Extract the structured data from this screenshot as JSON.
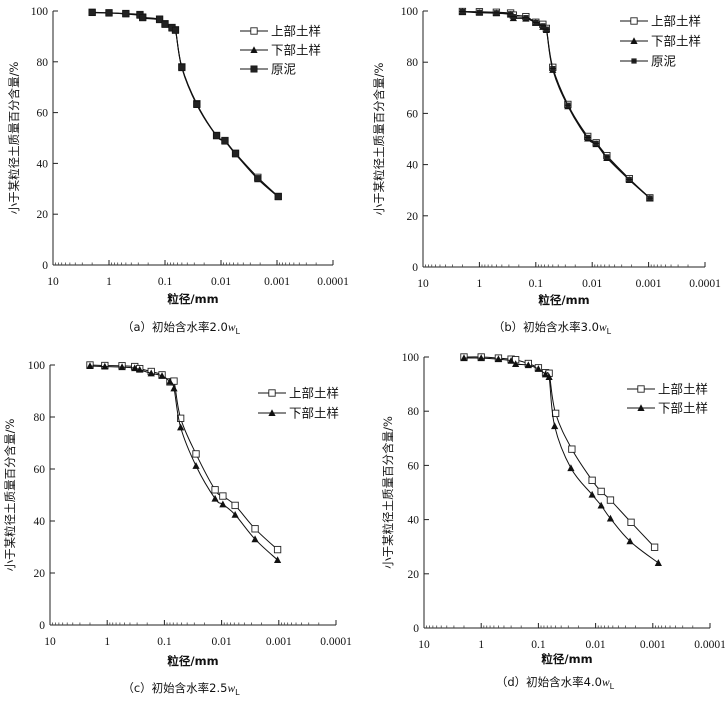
{
  "figure": {
    "sizes_note": "particle size in mm, log axis reversed",
    "panels_order": [
      "a",
      "b",
      "c",
      "d"
    ]
  },
  "chart_data": [
    {
      "id": "a",
      "type": "line",
      "title": "",
      "caption_prefix": "（a）初始含水率2.0",
      "caption_var": "w",
      "caption_sub": "L",
      "xlabel": "粒径/mm",
      "ylabel": "小于某粒径土质量百分含量/%",
      "xscale": "log-reversed",
      "xlim": [
        10,
        0.0001
      ],
      "ylim": [
        0,
        100
      ],
      "xticks": [
        "10",
        "1",
        "0.1",
        "0.01",
        "0.001",
        "0.0001"
      ],
      "yticks": [
        "0",
        "20",
        "40",
        "60",
        "80",
        "100"
      ],
      "legend_position": "top-right",
      "series": [
        {
          "name": "上部土样",
          "marker": "square-open",
          "x": [
            2,
            1,
            0.5,
            0.28,
            0.25,
            0.125,
            0.1,
            0.075,
            0.065,
            0.05,
            0.027,
            0.012,
            0.0085,
            0.0055,
            0.0022,
            0.00095
          ],
          "y": [
            99.5,
            99.3,
            99,
            98.6,
            97.6,
            96.8,
            95,
            93.5,
            92.6,
            78,
            63.5,
            51,
            49,
            44,
            34.5,
            27
          ]
        },
        {
          "name": "下部土样",
          "marker": "triangle-filled",
          "x": [
            2,
            1,
            0.5,
            0.28,
            0.25,
            0.125,
            0.1,
            0.075,
            0.065,
            0.05,
            0.027,
            0.012,
            0.0085,
            0.0055,
            0.0022,
            0.00095
          ],
          "y": [
            99.3,
            99.2,
            98.8,
            98.2,
            97.2,
            96.5,
            94.6,
            93.2,
            92.3,
            77.5,
            63,
            50.8,
            48.6,
            43.6,
            33.8,
            26.8
          ]
        },
        {
          "name": "原泥",
          "marker": "asterisk-square",
          "x": [
            2,
            1,
            0.5,
            0.28,
            0.25,
            0.125,
            0.1,
            0.075,
            0.065,
            0.05,
            0.027,
            0.012,
            0.0085,
            0.0055,
            0.0022,
            0.00095
          ],
          "y": [
            99.4,
            99.2,
            98.9,
            98.4,
            97.4,
            96.6,
            94.8,
            93.3,
            92.4,
            77.8,
            63.2,
            50.9,
            48.8,
            43.8,
            34,
            26.9
          ]
        }
      ]
    },
    {
      "id": "b",
      "type": "line",
      "title": "",
      "caption_prefix": "（b）初始含水率3.0",
      "caption_var": "w",
      "caption_sub": "L",
      "xlabel": "粒径/mm",
      "ylabel": "小于某粒径土质量百分含量/%",
      "xscale": "log-reversed",
      "xlim": [
        10,
        0.0001
      ],
      "ylim": [
        0,
        100
      ],
      "xticks": [
        "10",
        "1",
        "0.1",
        "0.01",
        "0.001",
        "0.0001"
      ],
      "yticks": [
        "0",
        "20",
        "40",
        "60",
        "80",
        "100"
      ],
      "legend_position": "top-right",
      "series": [
        {
          "name": "上部土样",
          "marker": "square-open",
          "x": [
            2,
            1,
            0.5,
            0.28,
            0.25,
            0.15,
            0.1,
            0.075,
            0.065,
            0.05,
            0.027,
            0.012,
            0.0085,
            0.0055,
            0.0022,
            0.00095
          ],
          "y": [
            99.8,
            99.7,
            99.5,
            99.2,
            98.4,
            97.8,
            95.6,
            94.8,
            93.2,
            78,
            63.5,
            51,
            48.5,
            43.5,
            34.5,
            27
          ]
        },
        {
          "name": "下部土样",
          "marker": "triangle-filled",
          "x": [
            2,
            1,
            0.5,
            0.28,
            0.25,
            0.15,
            0.1,
            0.075,
            0.065,
            0.05,
            0.027,
            0.012,
            0.0085,
            0.0055,
            0.0022,
            0.00095
          ],
          "y": [
            99.7,
            99.3,
            99.1,
            98.6,
            97.2,
            97,
            95.4,
            93.8,
            92.6,
            77,
            62.8,
            50.2,
            48,
            42.6,
            34,
            26.8
          ]
        },
        {
          "name": "原泥",
          "marker": "asterisk",
          "x": [
            2,
            1,
            0.5,
            0.28,
            0.25,
            0.15,
            0.1,
            0.075,
            0.065,
            0.05,
            0.027,
            0.012,
            0.0085,
            0.0055,
            0.0022,
            0.00095
          ],
          "y": [
            99.8,
            99.5,
            99.3,
            98.9,
            97.8,
            97.4,
            95.5,
            94.2,
            92.9,
            77.5,
            63.2,
            50.6,
            48.3,
            43,
            34.2,
            26.9
          ]
        }
      ]
    },
    {
      "id": "c",
      "type": "line",
      "title": "",
      "caption_prefix": "（c）初始含水率2.5",
      "caption_var": "w",
      "caption_sub": "L",
      "xlabel": "粒径/mm",
      "ylabel": "小于某粒径土质量百分含量/%",
      "xscale": "log-reversed",
      "xlim": [
        10,
        0.0001
      ],
      "ylim": [
        0,
        100
      ],
      "xticks": [
        "10",
        "1",
        "0.1",
        "0.01",
        "0.001",
        "0.0001"
      ],
      "yticks": [
        "0",
        "20",
        "40",
        "60",
        "80",
        "100"
      ],
      "legend_position": "top-right",
      "series": [
        {
          "name": "上部土样",
          "marker": "square-open",
          "x": [
            2,
            1.1,
            0.55,
            0.33,
            0.27,
            0.17,
            0.11,
            0.08,
            0.068,
            0.052,
            0.028,
            0.013,
            0.0095,
            0.0058,
            0.0026,
            0.00105
          ],
          "y": [
            100,
            99.8,
            99.7,
            99.4,
            98.6,
            97.5,
            96.2,
            93.5,
            93.8,
            79.5,
            65.8,
            52,
            49.6,
            46,
            37,
            29
          ]
        },
        {
          "name": "下部土样",
          "marker": "triangle-filled",
          "x": [
            2,
            1.1,
            0.55,
            0.33,
            0.27,
            0.17,
            0.11,
            0.08,
            0.068,
            0.052,
            0.028,
            0.013,
            0.0095,
            0.0058,
            0.0026,
            0.00105
          ],
          "y": [
            99.6,
            99.4,
            99.2,
            98.8,
            98.2,
            96.8,
            95.8,
            93.6,
            91,
            76,
            61.2,
            48.6,
            46.4,
            42.4,
            33,
            25
          ]
        }
      ]
    },
    {
      "id": "d",
      "type": "line",
      "title": "",
      "caption_prefix": "（d）初始含水率4.0",
      "caption_var": "w",
      "caption_sub": "L",
      "xlabel": "粒径/mm",
      "ylabel": "小于某粒径土质量百分含量/%",
      "xscale": "log-reversed",
      "xlim": [
        10,
        0.0001
      ],
      "ylim": [
        0,
        100
      ],
      "xticks": [
        "10",
        "1",
        "0.1",
        "0.01",
        "0.001",
        "0.0001"
      ],
      "yticks": [
        "0",
        "20",
        "40",
        "60",
        "80",
        "100"
      ],
      "legend_position": "top-right",
      "series": [
        {
          "name": "上部土样",
          "marker": "square-open",
          "x": [
            2,
            1,
            0.5,
            0.3,
            0.25,
            0.15,
            0.1,
            0.075,
            0.065,
            0.05,
            0.026,
            0.0115,
            0.008,
            0.0055,
            0.0024,
            0.00093
          ],
          "y": [
            100,
            100,
            99.6,
            99.2,
            99,
            97.6,
            96,
            94.2,
            94,
            79.2,
            66,
            54.5,
            50.4,
            47.2,
            39,
            29.8
          ]
        },
        {
          "name": "下部土样",
          "marker": "triangle-filled",
          "x": [
            2,
            1,
            0.5,
            0.3,
            0.25,
            0.15,
            0.1,
            0.075,
            0.065,
            0.052,
            0.027,
            0.0115,
            0.008,
            0.0055,
            0.0025,
            0.0008
          ],
          "y": [
            99.6,
            99.6,
            99.2,
            98.6,
            97.4,
            97,
            95.6,
            93.6,
            92.6,
            74.5,
            59,
            49.2,
            45.2,
            40.4,
            32,
            24
          ]
        }
      ]
    }
  ]
}
